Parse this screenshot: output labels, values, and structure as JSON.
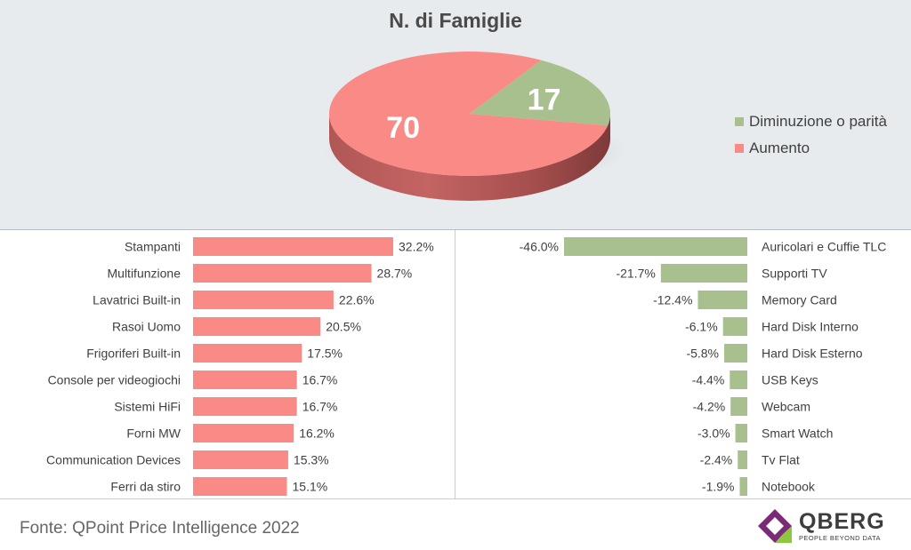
{
  "colors": {
    "increase": "#f98a86",
    "increase_dark": "#c46463",
    "decrease": "#a8c08e",
    "decrease_dark": "#86a070",
    "text": "#404040",
    "logo_purple": "#7b2a78",
    "logo_green": "#8dc63f"
  },
  "chart_data": [
    {
      "type": "pie",
      "title": "N. di Famiglie",
      "slices": [
        {
          "label": "Aumento",
          "value": 70,
          "color": "#f98a86"
        },
        {
          "label": "Diminuzione o parità",
          "value": 17,
          "color": "#a8c08e"
        }
      ],
      "legend": [
        "Diminuzione o parità",
        "Aumento"
      ],
      "legend_placement": "right"
    },
    {
      "type": "bar",
      "orientation": "horizontal",
      "categories": [
        "Stampanti",
        "Multifunzione",
        "Lavatrici Built-in",
        "Rasoi Uomo",
        "Frigoriferi Built-in",
        "Console per videogiochi",
        "Sistemi HiFi",
        "Forni MW",
        "Communication Devices",
        "Ferri da stiro"
      ],
      "values": [
        32.2,
        28.7,
        22.6,
        20.5,
        17.5,
        16.7,
        16.7,
        16.2,
        15.3,
        15.1
      ],
      "value_labels": [
        "32.2%",
        "28.7%",
        "22.6%",
        "20.5%",
        "17.5%",
        "16.7%",
        "16.7%",
        "16.2%",
        "15.3%",
        "15.1%"
      ],
      "color": "#f98a86"
    },
    {
      "type": "bar",
      "orientation": "horizontal",
      "categories": [
        "Auricolari e Cuffie TLC",
        "Supporti TV",
        "Memory Card",
        "Hard Disk Interno",
        "Hard Disk Esterno",
        "USB Keys",
        "Webcam",
        "Smart Watch",
        "Tv Flat",
        "Notebook"
      ],
      "values": [
        -46.0,
        -21.7,
        -12.4,
        -6.1,
        -5.8,
        -4.4,
        -4.2,
        -3.0,
        -2.4,
        -1.9
      ],
      "value_labels": [
        "-46.0%",
        "-21.7%",
        "-12.4%",
        "-6.1%",
        "-5.8%",
        "-4.4%",
        "-4.2%",
        "-3.0%",
        "-2.4%",
        "-1.9%"
      ],
      "color": "#a8c08e"
    }
  ],
  "footer": {
    "source": "Fonte: QPoint Price Intelligence 2022"
  },
  "logo": {
    "name": "QBERG",
    "tagline": "PEOPLE BEYOND DATA"
  }
}
